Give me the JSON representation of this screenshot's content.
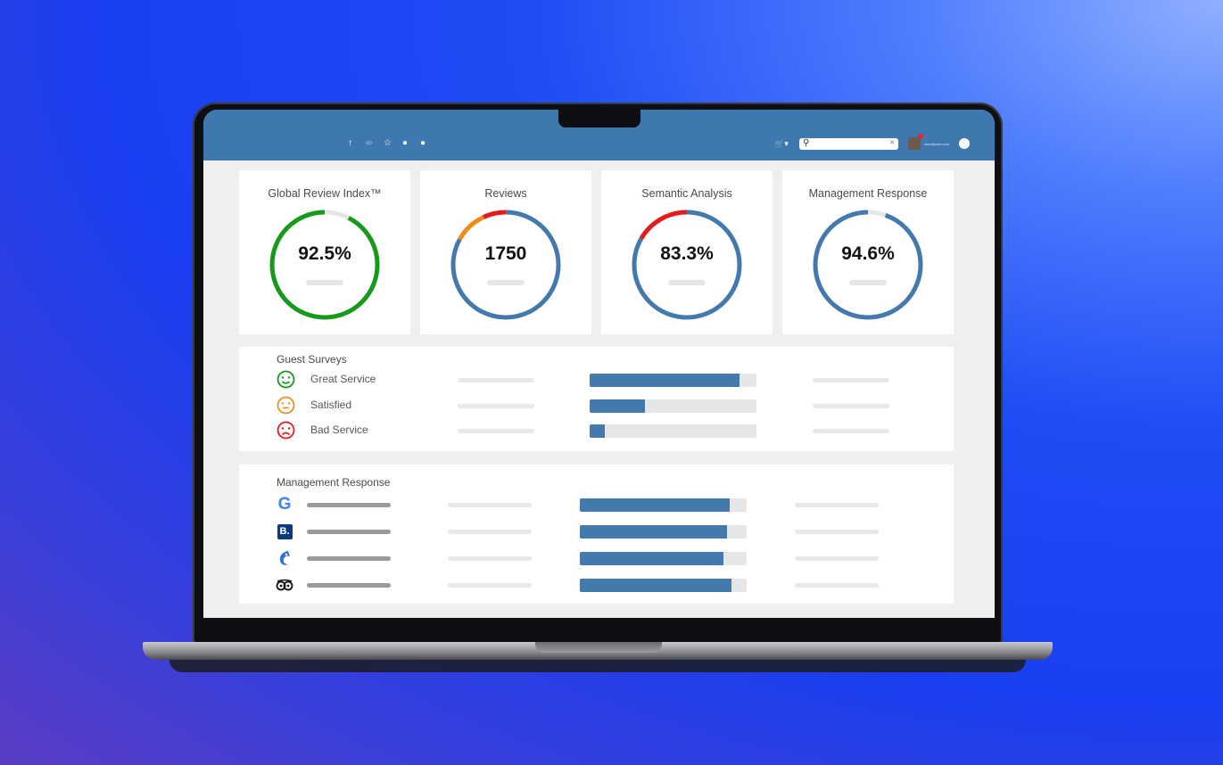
{
  "colors": {
    "accent": "#3f78ae",
    "bar": "#4379ad",
    "green": "#159a1a",
    "orange": "#f28c1a",
    "red": "#e31b1b",
    "track": "#e6e6e6"
  },
  "topbar": {
    "icons": [
      "upload-icon",
      "link-icon",
      "star-icon",
      "bell-icon",
      "info-icon"
    ],
    "cart_icon": "cart-icon",
    "search": {
      "value": "",
      "placeholder": ""
    },
    "user_email": "user@user.com"
  },
  "kpis": [
    {
      "title": "Global Review Index™",
      "value": "92.5%",
      "level": 0.925,
      "segments": [
        {
          "color": "#159a1a",
          "fraction": 0.925
        }
      ]
    },
    {
      "title": "Reviews",
      "value": "1750",
      "level": 1,
      "segments": [
        {
          "color": "#4379ad",
          "fraction": 0.83
        },
        {
          "color": "#f28c1a",
          "fraction": 0.1
        },
        {
          "color": "#e31b1b",
          "fraction": 0.07
        }
      ]
    },
    {
      "title": "Semantic Analysis",
      "value": "83.3%",
      "level": 1,
      "segments": [
        {
          "color": "#4379ad",
          "fraction": 0.833
        },
        {
          "color": "#e31b1b",
          "fraction": 0.167
        }
      ]
    },
    {
      "title": "Management Response",
      "value": "94.6%",
      "level": 0.946,
      "segments": [
        {
          "color": "#4379ad",
          "fraction": 0.946
        }
      ]
    }
  ],
  "guest_surveys": {
    "title": "Guest Surveys",
    "rows": [
      {
        "label": "Great Service",
        "icon": "smile-icon",
        "color": "#159a1a",
        "fraction": 0.9
      },
      {
        "label": "Satisfied",
        "icon": "neutral-face-icon",
        "color": "#f28c1a",
        "fraction": 0.33
      },
      {
        "label": "Bad Service",
        "icon": "frown-icon",
        "color": "#e31b1b",
        "fraction": 0.09
      }
    ]
  },
  "management_response": {
    "title": "Management Response",
    "rows": [
      {
        "icon": "google-logo-icon",
        "fraction": 0.9
      },
      {
        "icon": "booking-logo-icon",
        "fraction": 0.88
      },
      {
        "icon": "expedia-logo-icon",
        "fraction": 0.86
      },
      {
        "icon": "tripadvisor-logo-icon",
        "fraction": 0.91
      }
    ]
  }
}
